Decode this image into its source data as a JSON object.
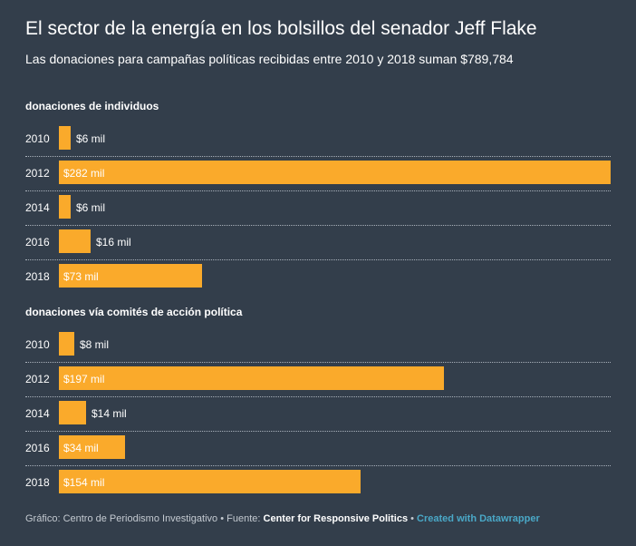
{
  "header": {
    "title": "El sector de la energía en los bolsillos del senador Jeff Flake",
    "subtitle": "Las donaciones para campañas políticas recibidas entre 2010 y 2018 suman $789,784"
  },
  "chart_data": {
    "type": "bar",
    "orientation": "horizontal",
    "title": "El sector de la energía en los bolsillos del senador Jeff Flake",
    "subtitle": "Las donaciones para campañas políticas recibidas entre 2010 y 2018 suman $789,784",
    "xlim": [
      0,
      282
    ],
    "unit": "miles de dólares",
    "grid": false,
    "bar_color": "#faaa2b",
    "background": "#333e4b",
    "groups": [
      {
        "label": "donaciones de individuos",
        "categories": [
          "2010",
          "2012",
          "2014",
          "2016",
          "2018"
        ],
        "values": [
          6,
          282,
          6,
          16,
          73
        ],
        "labels": [
          "$6 mil",
          "$282 mil",
          "$6 mil",
          "$16 mil",
          "$73 mil"
        ]
      },
      {
        "label": "donaciones vía comités de acción política",
        "categories": [
          "2010",
          "2012",
          "2014",
          "2016",
          "2018"
        ],
        "values": [
          8,
          197,
          14,
          34,
          154
        ],
        "labels": [
          "$8 mil",
          "$197 mil",
          "$14 mil",
          "$34 mil",
          "$154 mil"
        ]
      }
    ]
  },
  "footer": {
    "credit": "Gráfico: Centro de Periodismo Investigativo",
    "source_label": "Fuente:",
    "source": "Center for Responsive Politics",
    "created_with": "Created with Datawrapper",
    "separator": "•"
  }
}
